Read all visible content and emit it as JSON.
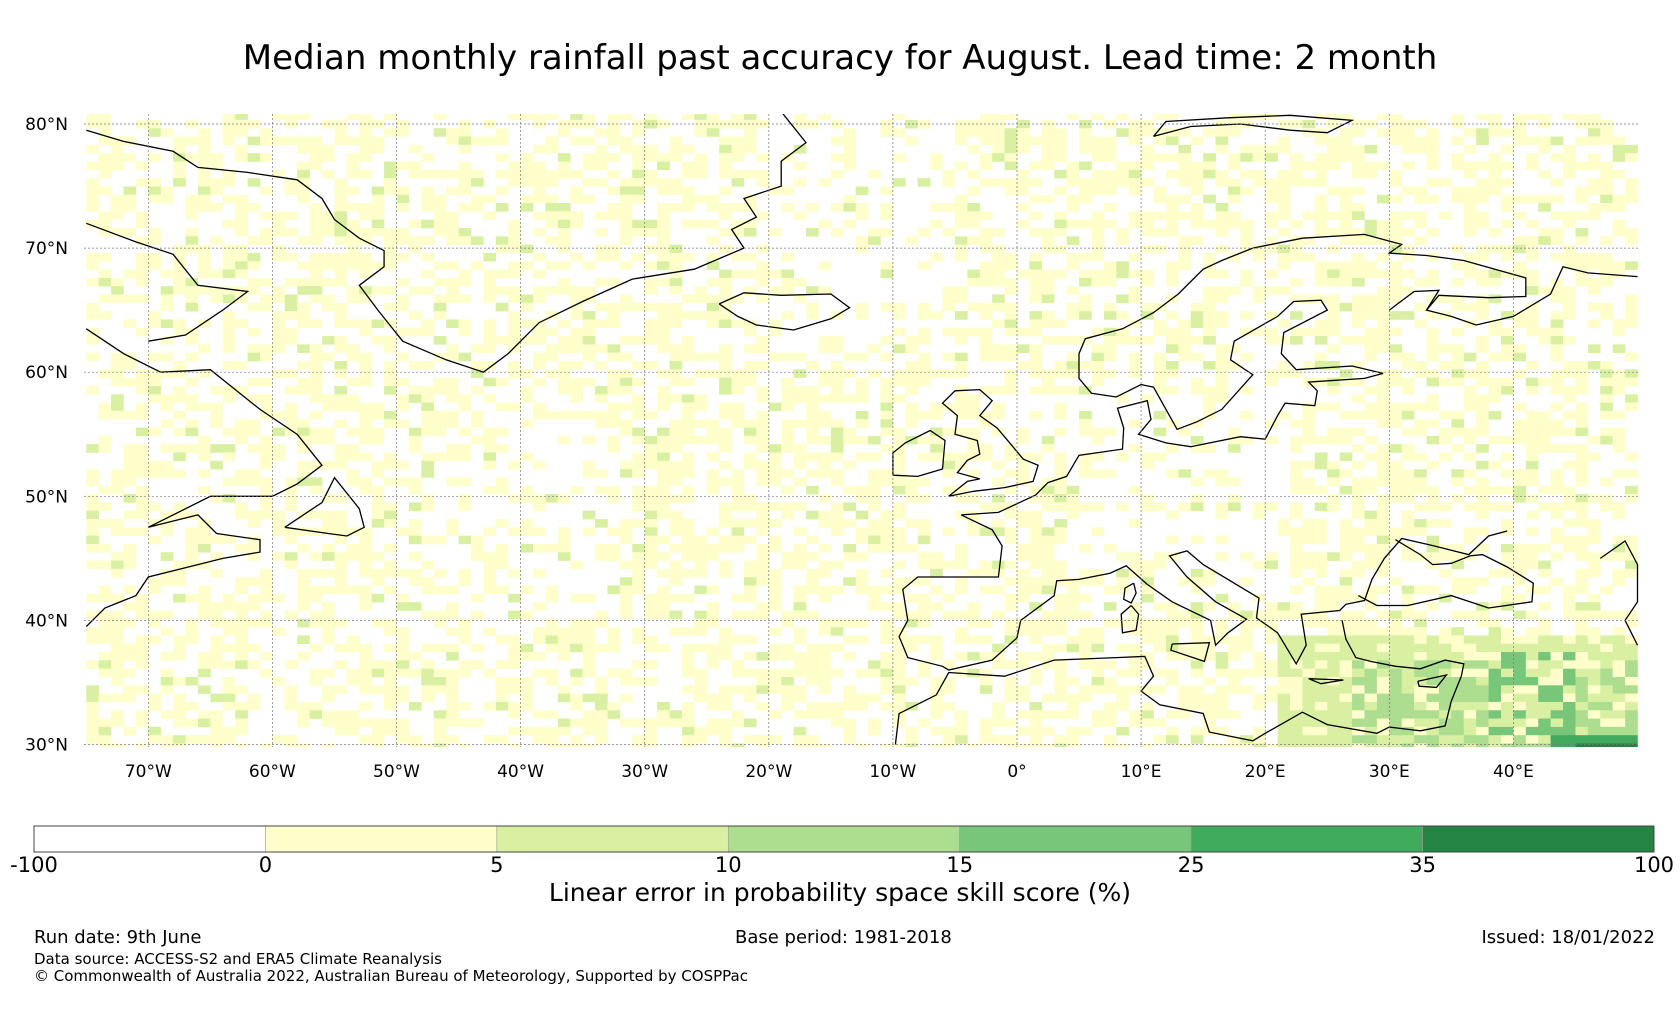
{
  "title": "Median monthly rainfall past accuracy for August. Lead time: 2 month",
  "map": {
    "lat_labels": [
      "80°N",
      "70°N",
      "60°N",
      "50°N",
      "40°N",
      "30°N"
    ],
    "lat_values": [
      80,
      70,
      60,
      50,
      40,
      30
    ],
    "lon_labels": [
      "70°W",
      "60°W",
      "50°W",
      "40°W",
      "30°W",
      "20°W",
      "10°W",
      "0°",
      "10°E",
      "20°E",
      "30°E",
      "40°E"
    ],
    "lon_values": [
      -70,
      -60,
      -50,
      -40,
      -30,
      -20,
      -10,
      0,
      10,
      20,
      30,
      40
    ],
    "lon_range": [
      -75,
      50
    ],
    "lat_range": [
      29,
      81
    ],
    "gridlines": true
  },
  "legend": {
    "tick_labels": [
      "-100",
      "0",
      "5",
      "10",
      "15",
      "25",
      "35",
      "100"
    ],
    "bins": [
      {
        "from": -100,
        "to": 0,
        "color": "#ffffff"
      },
      {
        "from": 0,
        "to": 5,
        "color": "#ffffcc"
      },
      {
        "from": 5,
        "to": 10,
        "color": "#d9f0a3"
      },
      {
        "from": 10,
        "to": 15,
        "color": "#addd8e"
      },
      {
        "from": 15,
        "to": 25,
        "color": "#78c679"
      },
      {
        "from": 25,
        "to": 35,
        "color": "#41ab5d"
      },
      {
        "from": 35,
        "to": 100,
        "color": "#238443"
      }
    ],
    "label": "Linear error in probability space skill score (%)"
  },
  "footer": {
    "run_date": "Run date: 9th June",
    "base_period": "Base period: 1981-2018",
    "issued": "Issued: 18/01/2022",
    "data_source": "Data source: ACCESS-S2 and ERA5 Climate Reanalysis",
    "copyright": "© Commonwealth of Australia 2022, Australian Bureau of Meteorology, Supported by COSPPac"
  }
}
